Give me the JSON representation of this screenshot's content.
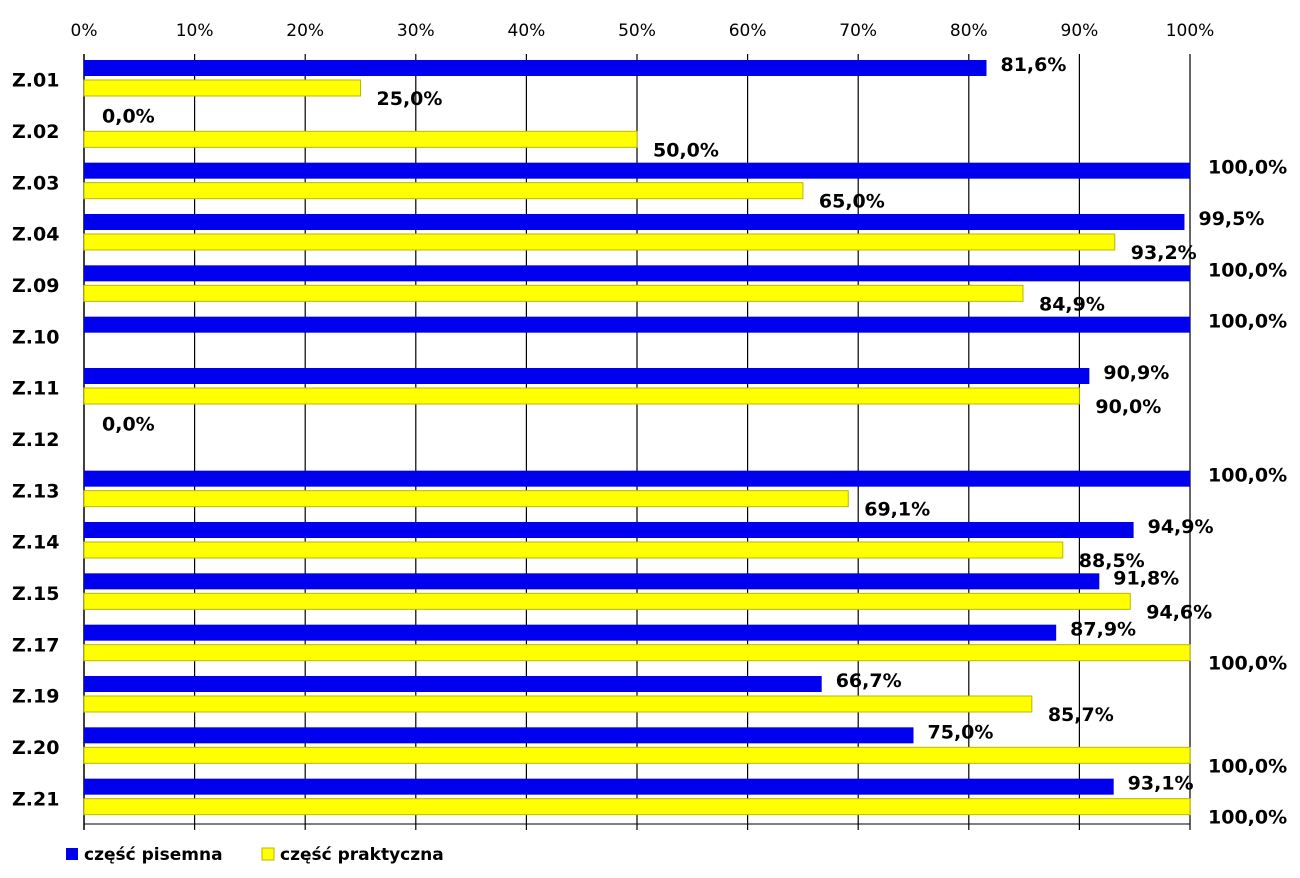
{
  "colors": {
    "written": "#0000ee",
    "practical": "#ffff00",
    "practical_border": "#b8b800",
    "grid": "#000000"
  },
  "chart_data": {
    "type": "bar",
    "orientation": "horizontal",
    "title": "",
    "xlabel": "",
    "ylabel": "",
    "xlim": [
      0,
      100
    ],
    "x_ticks": [
      "0%",
      "10%",
      "20%",
      "30%",
      "40%",
      "50%",
      "60%",
      "70%",
      "80%",
      "90%",
      "100%"
    ],
    "x_axis_position": "top",
    "grid": true,
    "legend_position": "bottom-left",
    "categories": [
      "Z.01",
      "Z.02",
      "Z.03",
      "Z.04",
      "Z.09",
      "Z.10",
      "Z.11",
      "Z.12",
      "Z.13",
      "Z.14",
      "Z.15",
      "Z.17",
      "Z.19",
      "Z.20",
      "Z.21"
    ],
    "series": [
      {
        "name": "część pisemna",
        "values": [
          81.6,
          0.0,
          100.0,
          99.5,
          100.0,
          100.0,
          90.9,
          0.0,
          100.0,
          94.9,
          91.8,
          87.9,
          66.7,
          75.0,
          93.1
        ],
        "labels": [
          "81,6%",
          "0,0%",
          "100,0%",
          "99,5%",
          "100,0%",
          "100,0%",
          "90,9%",
          "0,0%",
          "100,0%",
          "94,9%",
          "91,8%",
          "87,9%",
          "66,7%",
          "75,0%",
          "93,1%"
        ]
      },
      {
        "name": "część praktyczna",
        "values": [
          25.0,
          50.0,
          65.0,
          93.2,
          84.9,
          null,
          90.0,
          null,
          69.1,
          88.5,
          94.6,
          100.0,
          85.7,
          100.0,
          100.0
        ],
        "labels": [
          "25,0%",
          "50,0%",
          "65,0%",
          "93,2%",
          "84,9%",
          "",
          "90,0%",
          "",
          "69,1%",
          "88,5%",
          "94,6%",
          "100,0%",
          "85,7%",
          "100,0%",
          "100,0%"
        ]
      }
    ]
  }
}
